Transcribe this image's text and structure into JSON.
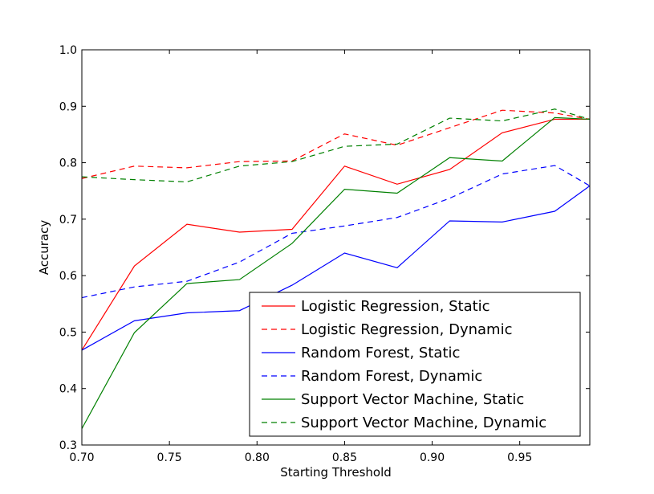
{
  "chart_data": {
    "type": "line",
    "title": "",
    "xlabel": "Starting Threshold",
    "ylabel": "Accuracy",
    "xlim": [
      0.7,
      0.99
    ],
    "ylim": [
      0.3,
      1.0
    ],
    "grid": false,
    "legend_position": "lower-right",
    "x_ticks": [
      0.7,
      0.75,
      0.8,
      0.85,
      0.9,
      0.95
    ],
    "x_tick_labels": [
      "0.70",
      "0.75",
      "0.80",
      "0.85",
      "0.90",
      "0.95"
    ],
    "y_ticks": [
      0.3,
      0.4,
      0.5,
      0.6,
      0.7,
      0.8,
      0.9,
      1.0
    ],
    "y_tick_labels": [
      "0.3",
      "0.4",
      "0.5",
      "0.6",
      "0.7",
      "0.8",
      "0.9",
      "1.0"
    ],
    "x": [
      0.7,
      0.73,
      0.76,
      0.79,
      0.82,
      0.85,
      0.88,
      0.91,
      0.94,
      0.97,
      0.99
    ],
    "series": [
      {
        "name": "Logistic Regression, Static",
        "color": "#ff0000",
        "style": "solid",
        "values": [
          0.468,
          0.617,
          0.691,
          0.677,
          0.682,
          0.794,
          0.762,
          0.788,
          0.853,
          0.877,
          0.877
        ]
      },
      {
        "name": "Logistic Regression, Dynamic",
        "color": "#ff0000",
        "style": "dashed",
        "values": [
          0.772,
          0.794,
          0.791,
          0.802,
          0.803,
          0.851,
          0.831,
          0.862,
          0.893,
          0.888,
          0.877
        ]
      },
      {
        "name": "Random Forest, Static",
        "color": "#0000ff",
        "style": "solid",
        "values": [
          0.468,
          0.52,
          0.534,
          0.538,
          0.583,
          0.64,
          0.614,
          0.697,
          0.695,
          0.714,
          0.759
        ]
      },
      {
        "name": "Random Forest, Dynamic",
        "color": "#0000ff",
        "style": "dashed",
        "values": [
          0.561,
          0.58,
          0.59,
          0.624,
          0.675,
          0.688,
          0.703,
          0.737,
          0.78,
          0.795,
          0.759
        ]
      },
      {
        "name": "Support Vector Machine, Static",
        "color": "#008000",
        "style": "solid",
        "values": [
          0.329,
          0.499,
          0.586,
          0.593,
          0.657,
          0.753,
          0.746,
          0.809,
          0.803,
          0.88,
          0.877
        ]
      },
      {
        "name": "Support Vector Machine, Dynamic",
        "color": "#008000",
        "style": "dashed",
        "values": [
          0.775,
          0.77,
          0.766,
          0.794,
          0.802,
          0.829,
          0.833,
          0.879,
          0.874,
          0.895,
          0.877
        ]
      }
    ]
  }
}
